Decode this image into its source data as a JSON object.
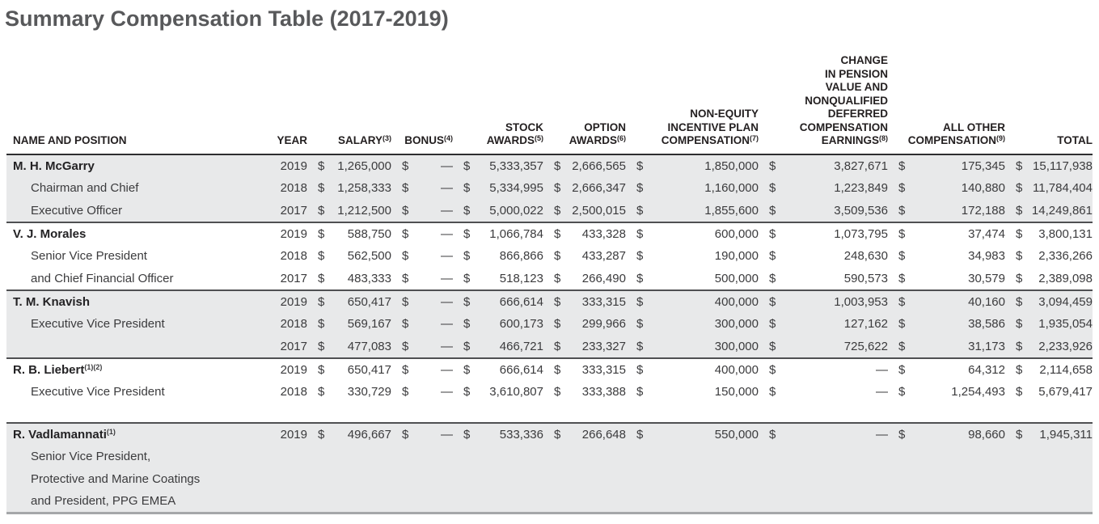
{
  "title": "Summary Compensation Table (2017-2019)",
  "colors": {
    "title_text": "#58595b",
    "header_text": "#231f20",
    "body_text": "#3b3b3d",
    "name_text": "#232224",
    "shaded_row_bg": "#e8e9ea",
    "header_rule": "#2e2e30",
    "group_rule": "#4f5052",
    "bottom_rule": "#a5a7a9"
  },
  "table": {
    "currency_symbol": "$",
    "columns": [
      {
        "key": "name",
        "lines": [
          "NAME AND POSITION"
        ],
        "sup": ""
      },
      {
        "key": "year",
        "lines": [
          "YEAR"
        ],
        "sup": ""
      },
      {
        "key": "salary",
        "lines": [
          "SALARY"
        ],
        "sup": "(3)"
      },
      {
        "key": "bonus",
        "lines": [
          "BONUS"
        ],
        "sup": "(4)"
      },
      {
        "key": "stock",
        "lines": [
          "STOCK",
          "AWARDS"
        ],
        "sup": "(5)"
      },
      {
        "key": "option",
        "lines": [
          "OPTION",
          "AWARDS"
        ],
        "sup": "(6)"
      },
      {
        "key": "noneq",
        "lines": [
          "NON-EQUITY",
          "INCENTIVE PLAN",
          "COMPENSATION"
        ],
        "sup": "(7)"
      },
      {
        "key": "pension",
        "lines": [
          "CHANGE",
          "IN PENSION",
          "VALUE AND",
          "NONQUALIFIED",
          "DEFERRED",
          "COMPENSATION",
          "EARNINGS"
        ],
        "sup": "(8)"
      },
      {
        "key": "other",
        "lines": [
          "ALL OTHER",
          "COMPENSATION"
        ],
        "sup": "(9)"
      },
      {
        "key": "total",
        "lines": [
          "TOTAL"
        ],
        "sup": ""
      }
    ],
    "groups": [
      {
        "shaded": true,
        "gap_before": false,
        "name": "M. H. McGarry",
        "name_sup": "",
        "position_lines": [
          "Chairman and Chief",
          "Executive Officer"
        ],
        "rows": [
          {
            "year": "2019",
            "salary": "1,265,000",
            "bonus": "—",
            "stock": "5,333,357",
            "option": "2,666,565",
            "noneq": "1,850,000",
            "pension": "3,827,671",
            "other": "175,345",
            "total": "15,117,938"
          },
          {
            "year": "2018",
            "salary": "1,258,333",
            "bonus": "—",
            "stock": "5,334,995",
            "option": "2,666,347",
            "noneq": "1,160,000",
            "pension": "1,223,849",
            "other": "140,880",
            "total": "11,784,404"
          },
          {
            "year": "2017",
            "salary": "1,212,500",
            "bonus": "—",
            "stock": "5,000,022",
            "option": "2,500,015",
            "noneq": "1,855,600",
            "pension": "3,509,536",
            "other": "172,188",
            "total": "14,249,861"
          }
        ]
      },
      {
        "shaded": false,
        "gap_before": false,
        "name": "V. J. Morales",
        "name_sup": "",
        "position_lines": [
          "Senior Vice President",
          "and Chief Financial Officer"
        ],
        "rows": [
          {
            "year": "2019",
            "salary": "588,750",
            "bonus": "—",
            "stock": "1,066,784",
            "option": "433,328",
            "noneq": "600,000",
            "pension": "1,073,795",
            "other": "37,474",
            "total": "3,800,131"
          },
          {
            "year": "2018",
            "salary": "562,500",
            "bonus": "—",
            "stock": "866,866",
            "option": "433,287",
            "noneq": "190,000",
            "pension": "248,630",
            "other": "34,983",
            "total": "2,336,266"
          },
          {
            "year": "2017",
            "salary": "483,333",
            "bonus": "—",
            "stock": "518,123",
            "option": "266,490",
            "noneq": "500,000",
            "pension": "590,573",
            "other": "30,579",
            "total": "2,389,098"
          }
        ]
      },
      {
        "shaded": true,
        "gap_before": false,
        "name": "T. M. Knavish",
        "name_sup": "",
        "position_lines": [
          "Executive Vice President",
          ""
        ],
        "rows": [
          {
            "year": "2019",
            "salary": "650,417",
            "bonus": "—",
            "stock": "666,614",
            "option": "333,315",
            "noneq": "400,000",
            "pension": "1,003,953",
            "other": "40,160",
            "total": "3,094,459"
          },
          {
            "year": "2018",
            "salary": "569,167",
            "bonus": "—",
            "stock": "600,173",
            "option": "299,966",
            "noneq": "300,000",
            "pension": "127,162",
            "other": "38,586",
            "total": "1,935,054"
          },
          {
            "year": "2017",
            "salary": "477,083",
            "bonus": "—",
            "stock": "466,721",
            "option": "233,327",
            "noneq": "300,000",
            "pension": "725,622",
            "other": "31,173",
            "total": "2,233,926"
          }
        ]
      },
      {
        "shaded": false,
        "gap_before": false,
        "name": "R. B. Liebert",
        "name_sup": "(1)(2)",
        "position_lines": [
          "Executive Vice President"
        ],
        "rows": [
          {
            "year": "2019",
            "salary": "650,417",
            "bonus": "—",
            "stock": "666,614",
            "option": "333,315",
            "noneq": "400,000",
            "pension": "—",
            "other": "64,312",
            "total": "2,114,658"
          },
          {
            "year": "2018",
            "salary": "330,729",
            "bonus": "—",
            "stock": "3,610,807",
            "option": "333,388",
            "noneq": "150,000",
            "pension": "—",
            "other": "1,254,493",
            "total": "5,679,417"
          }
        ]
      },
      {
        "shaded": true,
        "gap_before": true,
        "name": "R. Vadlamannati",
        "name_sup": "(1)",
        "position_lines": [
          "Senior Vice President,",
          "Protective and Marine Coatings",
          "and President, PPG EMEA"
        ],
        "rows": [
          {
            "year": "2019",
            "salary": "496,667",
            "bonus": "—",
            "stock": "533,336",
            "option": "266,648",
            "noneq": "550,000",
            "pension": "—",
            "other": "98,660",
            "total": "1,945,311"
          }
        ]
      }
    ]
  }
}
